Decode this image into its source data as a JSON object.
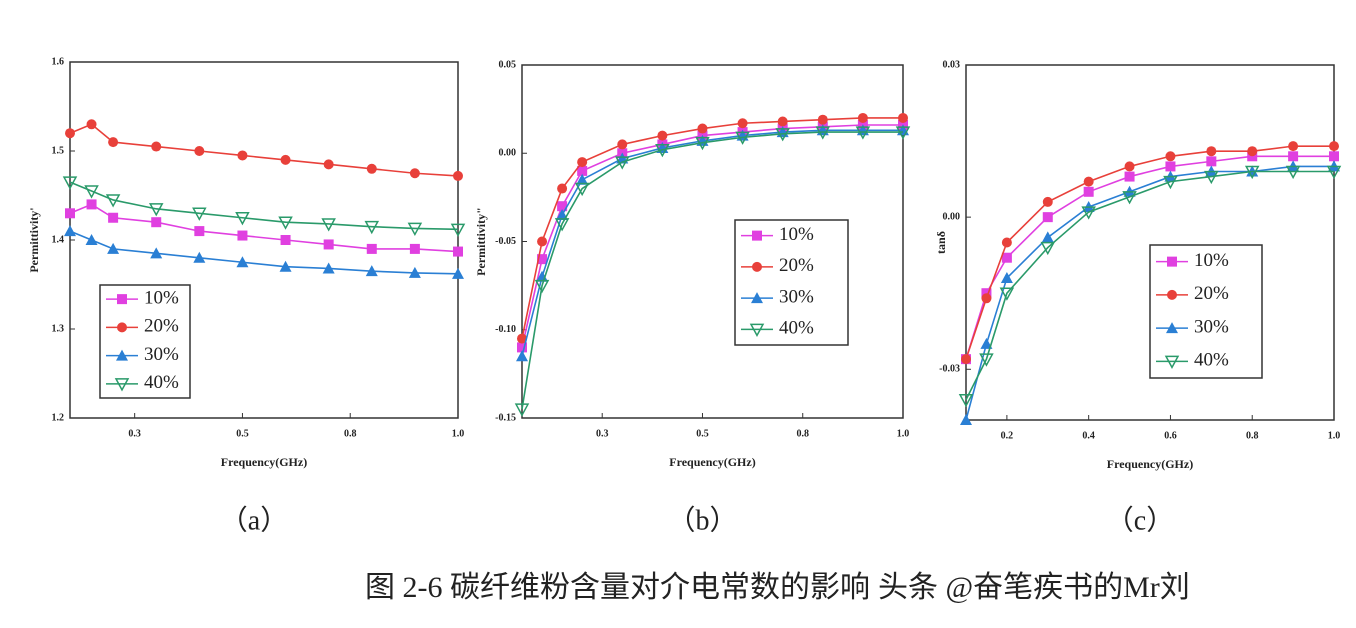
{
  "chart_data": [
    {
      "type": "line",
      "title": "（a）",
      "x_label": "Frequency(GHz)",
      "y_label": "Permittivity'",
      "x": [
        0.1,
        0.15,
        0.2,
        0.3,
        0.4,
        0.5,
        0.6,
        0.7,
        0.8,
        0.9,
        1.0
      ],
      "xlim": [
        0.1,
        1.0
      ],
      "xticks": [
        {
          "value": 0.25,
          "label": "0.3"
        },
        0.5,
        {
          "value": 0.75,
          "label": "0.8"
        },
        {
          "value": 1,
          "label": "1.0"
        }
      ],
      "ylim": [
        1.2,
        1.6
      ],
      "yticks": [
        1.2,
        1.3,
        1.4,
        1.5,
        1.6
      ],
      "legend": "lower left",
      "series": [
        {
          "name": "10%",
          "color": "#e040e0",
          "marker": "square",
          "values": [
            1.43,
            1.44,
            1.425,
            1.42,
            1.41,
            1.405,
            1.4,
            1.395,
            1.39,
            1.39,
            1.387
          ]
        },
        {
          "name": "20%",
          "color": "#e8403a",
          "marker": "circle",
          "values": [
            1.52,
            1.53,
            1.51,
            1.505,
            1.5,
            1.495,
            1.49,
            1.485,
            1.48,
            1.475,
            1.472
          ]
        },
        {
          "name": "30%",
          "color": "#2a7fd4",
          "marker": "triangle",
          "values": [
            1.41,
            1.4,
            1.39,
            1.385,
            1.38,
            1.375,
            1.37,
            1.368,
            1.365,
            1.363,
            1.362
          ]
        },
        {
          "name": "40%",
          "color": "#2a9a6a",
          "marker": "triangle-down",
          "values": [
            1.465,
            1.455,
            1.445,
            1.435,
            1.43,
            1.425,
            1.42,
            1.418,
            1.415,
            1.413,
            1.412
          ]
        }
      ]
    },
    {
      "type": "line",
      "title": "（b）",
      "x_label": "Frequency(GHz)",
      "y_label": "Permittivity\"",
      "x": [
        0.05,
        0.1,
        0.15,
        0.2,
        0.3,
        0.4,
        0.5,
        0.6,
        0.7,
        0.8,
        0.9,
        1.0
      ],
      "xlim": [
        0.05,
        1.0
      ],
      "xticks": [
        {
          "value": 0.25,
          "label": "0.3"
        },
        0.5,
        {
          "value": 0.75,
          "label": "0.8"
        },
        {
          "value": 1,
          "label": "1.0"
        }
      ],
      "ylim": [
        -0.15,
        0.05
      ],
      "yticks": [
        {
          "value": -0.15,
          "label": "-0.15"
        },
        {
          "value": -0.1,
          "label": "-0.10"
        },
        {
          "value": -0.05,
          "label": "-0.05"
        },
        {
          "value": 0,
          "label": "0.00"
        },
        {
          "value": 0.05,
          "label": "0.05"
        }
      ],
      "legend": "center right",
      "series": [
        {
          "name": "10%",
          "color": "#e040e0",
          "marker": "square",
          "values": [
            -0.11,
            -0.06,
            -0.03,
            -0.01,
            0.0,
            0.005,
            0.01,
            0.012,
            0.014,
            0.015,
            0.016,
            0.016
          ]
        },
        {
          "name": "20%",
          "color": "#e8403a",
          "marker": "circle",
          "values": [
            -0.105,
            -0.05,
            -0.02,
            -0.005,
            0.005,
            0.01,
            0.014,
            0.017,
            0.018,
            0.019,
            0.02,
            0.02
          ]
        },
        {
          "name": "30%",
          "color": "#2a7fd4",
          "marker": "triangle",
          "values": [
            -0.115,
            -0.07,
            -0.035,
            -0.015,
            -0.003,
            0.003,
            0.007,
            0.01,
            0.012,
            0.013,
            0.013,
            0.013
          ]
        },
        {
          "name": "40%",
          "color": "#2a9a6a",
          "marker": "triangle-down",
          "values": [
            -0.145,
            -0.075,
            -0.04,
            -0.02,
            -0.005,
            0.002,
            0.006,
            0.009,
            0.011,
            0.012,
            0.012,
            0.012
          ]
        }
      ]
    },
    {
      "type": "line",
      "title": "（c）",
      "x_label": "Frequency(GHz)",
      "y_label": "tanδ",
      "x": [
        0.1,
        0.15,
        0.2,
        0.3,
        0.4,
        0.5,
        0.6,
        0.7,
        0.8,
        0.9,
        1.0
      ],
      "xlim": [
        0.1,
        1.0
      ],
      "xticks": [
        0.2,
        0.4,
        0.6,
        0.8,
        {
          "value": 1,
          "label": "1.0"
        }
      ],
      "ylim": [
        -0.04,
        0.03
      ],
      "yticks": [
        {
          "value": -0.03,
          "label": "-0.03"
        },
        {
          "value": 0,
          "label": "0.00"
        },
        0.03
      ],
      "legend": "center right",
      "series": [
        {
          "name": "10%",
          "color": "#e040e0",
          "marker": "square",
          "values": [
            -0.028,
            -0.015,
            -0.008,
            0.0,
            0.005,
            0.008,
            0.01,
            0.011,
            0.012,
            0.012,
            0.012
          ]
        },
        {
          "name": "20%",
          "color": "#e8403a",
          "marker": "circle",
          "values": [
            -0.028,
            -0.016,
            -0.005,
            0.003,
            0.007,
            0.01,
            0.012,
            0.013,
            0.013,
            0.014,
            0.014
          ]
        },
        {
          "name": "30%",
          "color": "#2a7fd4",
          "marker": "triangle",
          "values": [
            -0.04,
            -0.025,
            -0.012,
            -0.004,
            0.002,
            0.005,
            0.008,
            0.009,
            0.009,
            0.01,
            0.01
          ]
        },
        {
          "name": "40%",
          "color": "#2a9a6a",
          "marker": "triangle-down",
          "values": [
            -0.036,
            -0.028,
            -0.015,
            -0.006,
            0.001,
            0.004,
            0.007,
            0.008,
            0.009,
            0.009,
            0.009
          ]
        }
      ]
    }
  ],
  "caption": "图 2-6 碳纤维粉含量对介电常数的影响",
  "watermark": "头条 @奋笔疾书的Mr刘"
}
